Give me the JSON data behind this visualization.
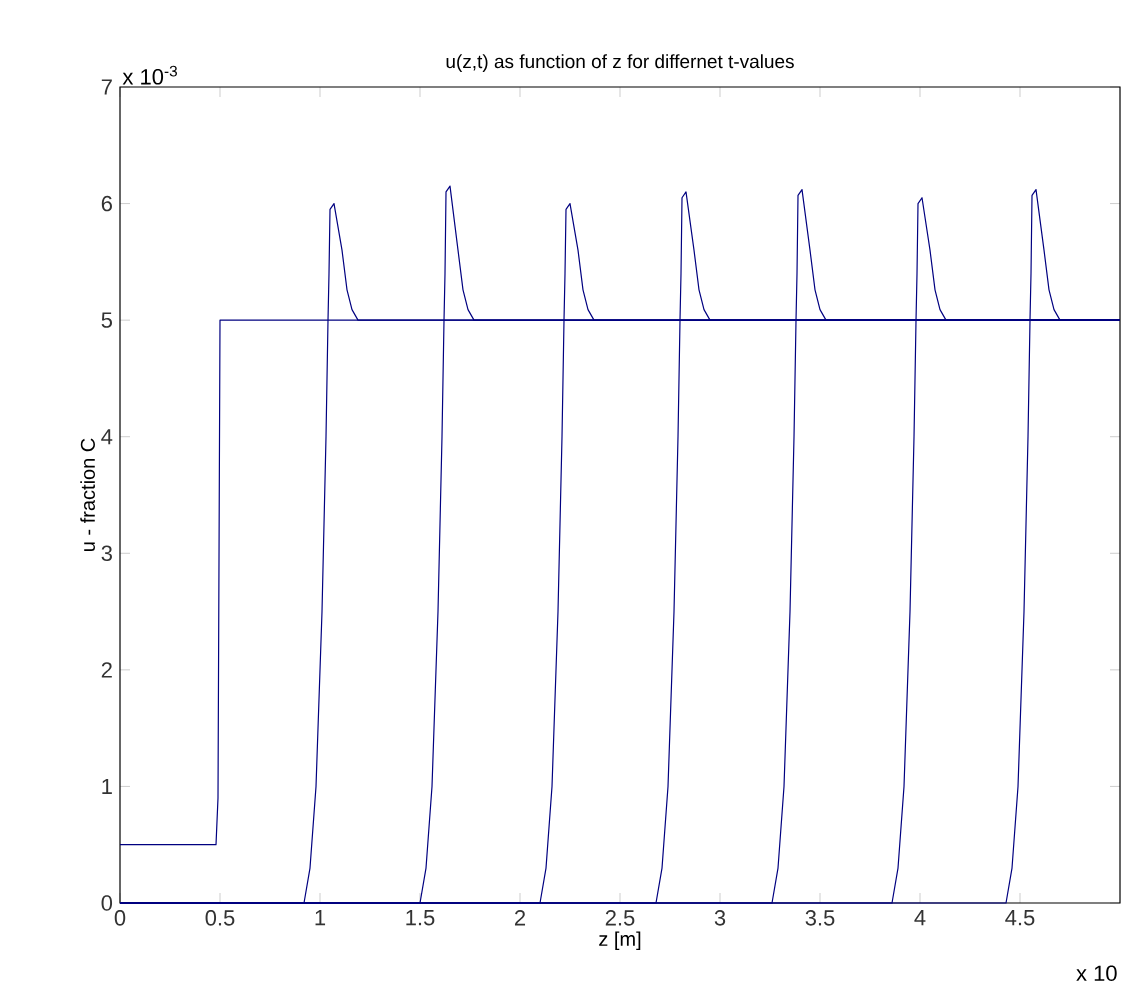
{
  "chart_data": {
    "type": "line",
    "title": "u(z,t) as function of z for differnet t-values",
    "xlabel": "z [m]",
    "ylabel": "u - fraction C",
    "annotations": [
      "x 10$^{-3}$",
      "x 10"
    ],
    "xlim": [
      0,
      5
    ],
    "ylim": [
      0,
      7
    ],
    "xticks": [
      0,
      0.5,
      1,
      1.5,
      2,
      2.5,
      3,
      3.5,
      4,
      4.5
    ],
    "yticks": [
      0,
      1,
      2,
      3,
      4,
      5,
      6,
      7
    ],
    "marker": "none",
    "line_style": "solid",
    "series": [
      {
        "color": "#000080",
        "x": [
          0,
          0.48,
          0.49,
          0.5,
          5
        ],
        "values": [
          0.5,
          0.5,
          0.9,
          5,
          5
        ]
      },
      {
        "color": "#000080",
        "x": [
          0,
          0.92,
          0.95,
          0.98,
          1.01,
          1.03,
          1.04,
          1.045,
          1.05,
          1.07,
          1.11,
          1.135,
          1.16,
          1.19,
          5
        ],
        "values": [
          0,
          0,
          0.3,
          1,
          2.5,
          4,
          5,
          5.4,
          5.95,
          6.0,
          5.6,
          5.26,
          5.09,
          5,
          5
        ]
      },
      {
        "color": "#000080",
        "x": [
          0,
          1.5,
          1.53,
          1.56,
          1.59,
          1.61,
          1.62,
          1.625,
          1.63,
          1.65,
          1.69,
          1.715,
          1.74,
          1.77,
          5
        ],
        "values": [
          0,
          0,
          0.3,
          1,
          2.5,
          4,
          5,
          5.4,
          6.1,
          6.15,
          5.6,
          5.26,
          5.09,
          5,
          5
        ]
      },
      {
        "color": "#000080",
        "x": [
          0,
          2.1,
          2.13,
          2.16,
          2.19,
          2.21,
          2.22,
          2.225,
          2.23,
          2.25,
          2.29,
          2.315,
          2.34,
          2.37,
          5
        ],
        "values": [
          0,
          0,
          0.3,
          1,
          2.5,
          4,
          5,
          5.4,
          5.95,
          6.0,
          5.6,
          5.26,
          5.09,
          5,
          5
        ]
      },
      {
        "color": "#000080",
        "x": [
          0,
          2.68,
          2.71,
          2.74,
          2.77,
          2.79,
          2.8,
          2.805,
          2.81,
          2.83,
          2.87,
          2.895,
          2.92,
          2.95,
          5
        ],
        "values": [
          0,
          0,
          0.3,
          1,
          2.5,
          4,
          5,
          5.4,
          6.05,
          6.1,
          5.6,
          5.26,
          5.09,
          5,
          5
        ]
      },
      {
        "color": "#000080",
        "x": [
          0,
          3.26,
          3.29,
          3.32,
          3.35,
          3.37,
          3.38,
          3.385,
          3.39,
          3.41,
          3.45,
          3.475,
          3.5,
          3.53,
          5
        ],
        "values": [
          0,
          0,
          0.3,
          1,
          2.5,
          4,
          5,
          5.4,
          6.07,
          6.12,
          5.6,
          5.26,
          5.09,
          5,
          5
        ]
      },
      {
        "color": "#000080",
        "x": [
          0,
          3.86,
          3.89,
          3.92,
          3.95,
          3.97,
          3.98,
          3.985,
          3.99,
          4.01,
          4.05,
          4.075,
          4.1,
          4.13,
          5
        ],
        "values": [
          0,
          0,
          0.3,
          1,
          2.5,
          4,
          5,
          5.4,
          6.0,
          6.05,
          5.6,
          5.26,
          5.09,
          5,
          5
        ]
      },
      {
        "color": "#000080",
        "x": [
          0,
          4.43,
          4.46,
          4.49,
          4.52,
          4.54,
          4.55,
          4.555,
          4.56,
          4.58,
          4.62,
          4.645,
          4.67,
          4.7,
          5
        ],
        "values": [
          0,
          0,
          0.3,
          1,
          2.5,
          4,
          5,
          5.4,
          6.07,
          6.12,
          5.6,
          5.26,
          5.09,
          5,
          5
        ]
      }
    ]
  }
}
